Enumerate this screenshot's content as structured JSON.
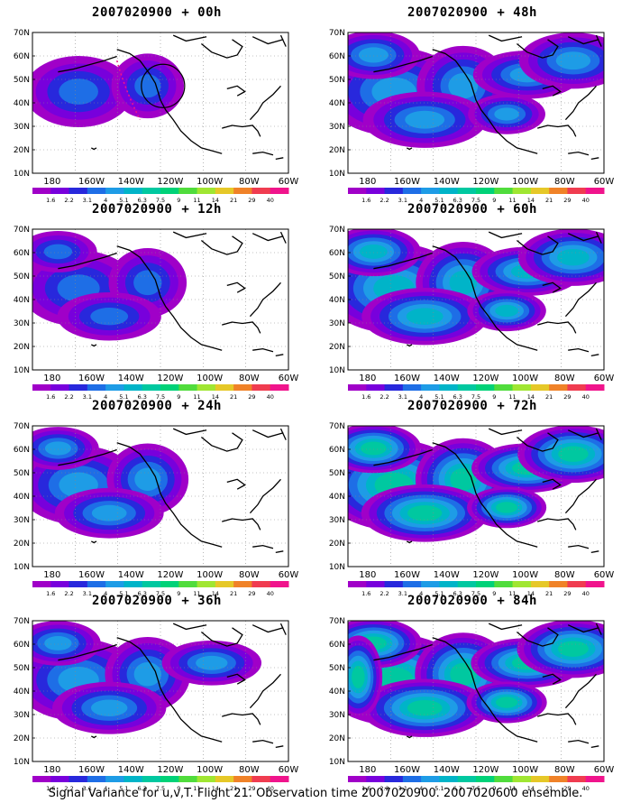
{
  "panels": [
    {
      "date": "2007020900",
      "lead": "+ 00h",
      "intensity": 0.35,
      "coverage": 0.3,
      "circle": true,
      "arc": true
    },
    {
      "date": "2007020900",
      "lead": "+ 48h",
      "intensity": 0.55,
      "coverage": 0.85
    },
    {
      "date": "2007020900",
      "lead": "+ 12h",
      "intensity": 0.4,
      "coverage": 0.45
    },
    {
      "date": "2007020900",
      "lead": "+ 60h",
      "intensity": 0.65,
      "coverage": 0.9
    },
    {
      "date": "2007020900",
      "lead": "+ 24h",
      "intensity": 0.5,
      "coverage": 0.55
    },
    {
      "date": "2007020900",
      "lead": "+ 72h",
      "intensity": 0.75,
      "coverage": 0.92
    },
    {
      "date": "2007020900",
      "lead": "+ 36h",
      "intensity": 0.55,
      "coverage": 0.65
    },
    {
      "date": "2007020900",
      "lead": "+ 84h",
      "intensity": 0.8,
      "coverage": 0.95
    }
  ],
  "lat_labels": [
    "70N",
    "60N",
    "50N",
    "40N",
    "30N",
    "20N",
    "10N"
  ],
  "lon_labels": [
    "180",
    "160W",
    "140W",
    "120W",
    "100W",
    "80W",
    "60W"
  ],
  "colorbar": {
    "labels": [
      "1.6",
      "2.2",
      "3.1",
      "4",
      "5.1",
      "6.3",
      "7.5",
      "9",
      "11",
      "14",
      "21",
      "29",
      "40"
    ],
    "colors": [
      "#a000c8",
      "#7800dc",
      "#2828dc",
      "#1e6ee6",
      "#1e9ce6",
      "#00b4c8",
      "#00c8a0",
      "#00d278",
      "#50dc3c",
      "#a0e632",
      "#e6c828",
      "#f08228",
      "#f03c50",
      "#f0148c"
    ]
  },
  "footer": "Signal Variance for u,v,T. Flight 21. Observation time 2007020900. 2007020600 ensemble."
}
